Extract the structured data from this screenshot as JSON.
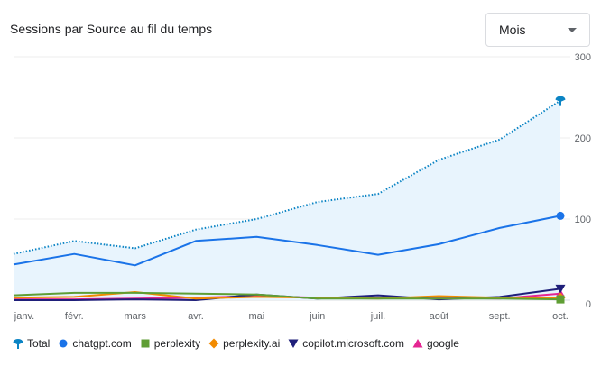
{
  "header": {
    "title": "Sessions par Source au fil du temps",
    "period_select": "Mois"
  },
  "chart_data": {
    "type": "line",
    "categories": [
      "janv.",
      "févr.",
      "mars",
      "avr.",
      "mai",
      "juin",
      "juil.",
      "août",
      "sept.",
      "oct."
    ],
    "y_ticks": [
      "0",
      "100",
      "200",
      "300"
    ],
    "ylim": [
      0,
      300
    ],
    "y_axis_position": "right",
    "grid": true,
    "legend_position": "bottom",
    "series": [
      {
        "name": "Total",
        "color": "#0b84c4",
        "style": "dotted",
        "area": true,
        "area_color": "#e8f4fd",
        "marker": "pin",
        "values": [
          57,
          73,
          64,
          87,
          100,
          121,
          131,
          173,
          198,
          246
        ]
      },
      {
        "name": "chatgpt.com",
        "color": "#1a73e8",
        "style": "solid",
        "marker": "circle",
        "values": [
          44,
          57,
          43,
          73,
          78,
          68,
          56,
          69,
          89,
          104
        ]
      },
      {
        "name": "perplexity",
        "color": "#5f9e34",
        "style": "solid",
        "marker": "square",
        "values": [
          6,
          9,
          9,
          8,
          7,
          2,
          2,
          2,
          2,
          1
        ]
      },
      {
        "name": "perplexity.ai",
        "color": "#f28b00",
        "style": "solid",
        "marker": "diamond",
        "values": [
          3,
          4,
          10,
          2,
          4,
          3,
          2,
          5,
          3,
          3
        ]
      },
      {
        "name": "copilot.microsoft.com",
        "color": "#1f1f7a",
        "style": "solid",
        "marker": "triangle-down",
        "values": [
          0,
          0,
          1,
          0,
          7,
          2,
          6,
          1,
          4,
          14
        ]
      },
      {
        "name": "google",
        "color": "#e52592",
        "style": "solid",
        "marker": "triangle-up",
        "values": [
          1,
          1,
          2,
          3,
          5,
          3,
          3,
          3,
          2,
          8
        ]
      }
    ]
  }
}
